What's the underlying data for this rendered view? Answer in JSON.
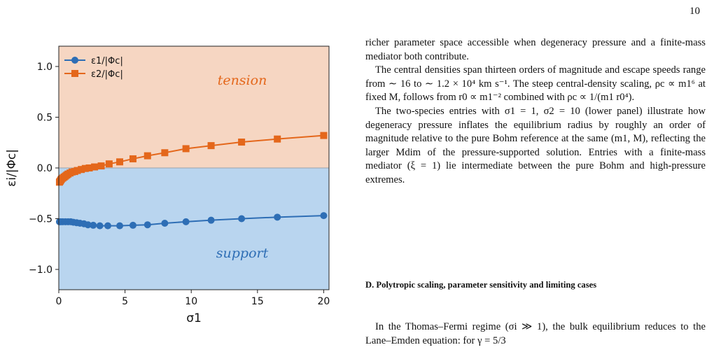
{
  "page_number": "10",
  "figure": {
    "region_labels": {
      "tension": "tension",
      "support": "support"
    },
    "colors": {
      "series1": "#2e6eb5",
      "series2": "#e4671b",
      "tension_bg": "#f6d6c2",
      "support_bg": "#b9d5ef"
    }
  },
  "chart_data": {
    "type": "line",
    "xlabel": "σ1",
    "ylabel": "εi/|Φc|",
    "xlim": [
      0,
      20.4
    ],
    "ylim": [
      -1.2,
      1.2
    ],
    "xticks": [
      "0",
      "5",
      "10",
      "15",
      "20"
    ],
    "yticks": [
      "1.0",
      "0.5",
      "0.0",
      "−0.5",
      "−1.0"
    ],
    "legend_position": "top-left",
    "series": [
      {
        "name": "ε1/|Φc|",
        "marker": "circle",
        "x": [
          0.05,
          0.15,
          0.3,
          0.5,
          0.7,
          0.9,
          1.1,
          1.35,
          1.6,
          1.9,
          2.2,
          2.6,
          3.1,
          3.7,
          4.6,
          5.6,
          6.7,
          8.0,
          9.6,
          11.5,
          13.8,
          16.5,
          20.0
        ],
        "y": [
          -0.53,
          -0.53,
          -0.53,
          -0.53,
          -0.53,
          -0.53,
          -0.535,
          -0.54,
          -0.545,
          -0.55,
          -0.56,
          -0.565,
          -0.57,
          -0.57,
          -0.57,
          -0.565,
          -0.56,
          -0.545,
          -0.53,
          -0.515,
          -0.5,
          -0.485,
          -0.47
        ]
      },
      {
        "name": "ε2/|Φc|",
        "marker": "square",
        "x": [
          0.05,
          0.1,
          0.15,
          0.2,
          0.3,
          0.4,
          0.5,
          0.6,
          0.7,
          0.85,
          1.0,
          1.2,
          1.4,
          1.7,
          2.0,
          2.3,
          2.7,
          3.2,
          3.8,
          4.6,
          5.6,
          6.7,
          8.0,
          9.6,
          11.5,
          13.8,
          16.5,
          20.0
        ],
        "y": [
          -0.14,
          -0.13,
          -0.12,
          -0.11,
          -0.1,
          -0.09,
          -0.08,
          -0.07,
          -0.06,
          -0.05,
          -0.04,
          -0.035,
          -0.025,
          -0.015,
          -0.005,
          0.0,
          0.01,
          0.02,
          0.04,
          0.06,
          0.09,
          0.12,
          0.15,
          0.19,
          0.22,
          0.255,
          0.285,
          0.32
        ]
      }
    ]
  },
  "text": {
    "para1": "richer parameter space accessible when degeneracy pressure and a finite-mass mediator both contribute.",
    "para2": "The central densities span thirteen orders of magnitude and escape speeds range from ∼ 16 to ∼ 1.2 × 10⁴ km s⁻¹. The steep central-density scaling, ρc ∝ m1⁶ at fixed M, follows from r0 ∝ m1⁻² combined with ρc ∝ 1/(m1 r0⁴).",
    "para3": "The two-species entries with σ1 = 1, σ2 = 10 (lower panel) illustrate how degeneracy pressure inflates the equilibrium radius by roughly an order of magnitude relative to the pure Bohm reference at the same (m1, M), reflecting the larger Mdim of the pressure-supported solution. Entries with a finite-mass mediator (ξ = 1) lie intermediate between the pure Bohm and high-pressure extremes.",
    "section_heading": "D.   Polytropic scaling, parameter sensitivity and limiting cases",
    "para4": "In the Thomas–Fermi regime (σi ≫ 1), the bulk equilibrium reduces to the Lane–Emden equation: for γ = 5/3"
  }
}
